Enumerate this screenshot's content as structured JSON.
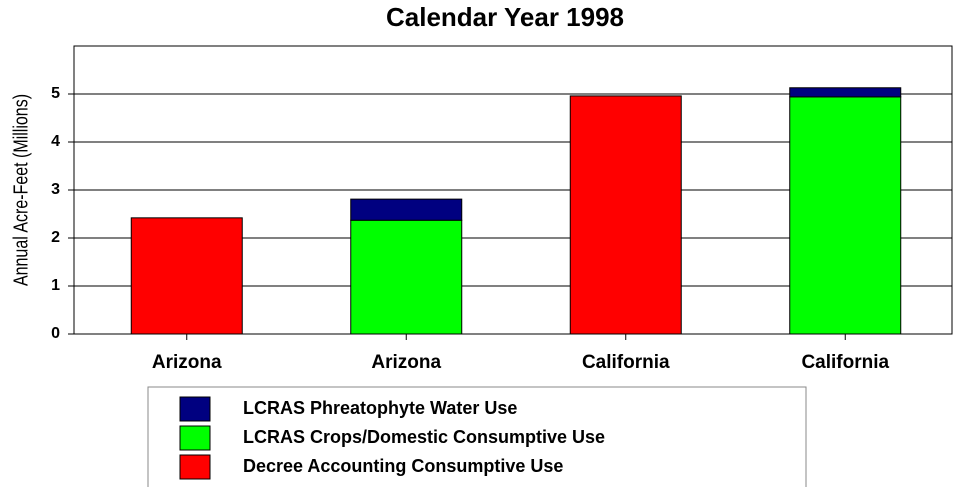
{
  "chart_data": {
    "type": "bar",
    "stacked": true,
    "title": "Calendar Year 1998",
    "y_label": "Annual Acre-Feet (Millions)",
    "categories": [
      "Arizona",
      "Arizona",
      "California",
      "California"
    ],
    "series": [
      {
        "name": "Decree Accounting Consumptive Use",
        "color": "#ff0000",
        "values": [
          2.42,
          null,
          4.96,
          null
        ]
      },
      {
        "name": "LCRAS Crops/Domestic Consumptive Use",
        "color": "#00ff00",
        "values": [
          null,
          2.37,
          null,
          4.94
        ]
      },
      {
        "name": "LCRAS Phreatophyte Water Use",
        "color": "#000080",
        "values": [
          null,
          0.44,
          null,
          0.19
        ]
      }
    ],
    "ylim": [
      0,
      6
    ],
    "yticks": [
      0,
      1,
      2,
      3,
      4,
      5
    ],
    "grid": true
  }
}
